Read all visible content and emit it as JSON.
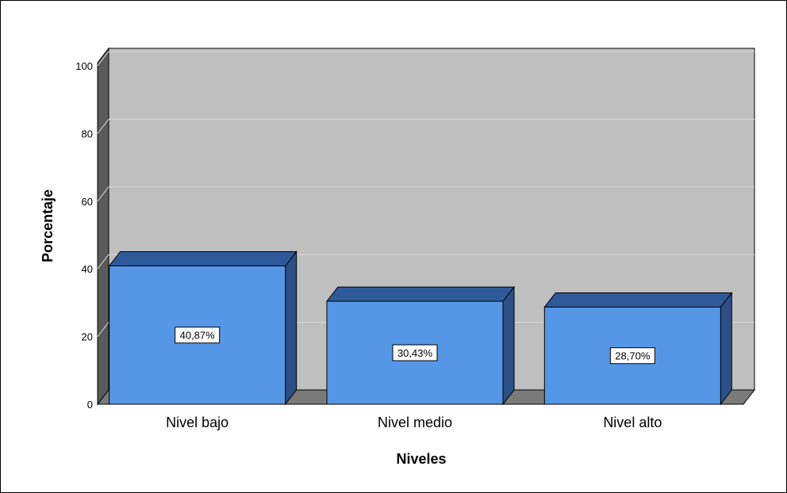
{
  "chart_data": {
    "type": "bar",
    "categories": [
      "Nivel bajo",
      "Nivel medio",
      "Nivel alto"
    ],
    "values": [
      40.87,
      30.43,
      28.7
    ],
    "value_labels": [
      "40,87%",
      "30,43%",
      "28,70%"
    ],
    "xlabel": "Niveles",
    "ylabel": "Porcentaje",
    "ylim": [
      0,
      100
    ],
    "yticks": [
      "0",
      "20",
      "40",
      "60",
      "80",
      "100"
    ],
    "grid": true,
    "three_d": true,
    "colors": {
      "bar_front": "#5597e6",
      "bar_top": "#2f5a9a",
      "bar_side": "#2c4f86",
      "wall": "#bfbfbf",
      "floor": "#7a7a7a",
      "side_wall": "#5a5a5a"
    }
  }
}
